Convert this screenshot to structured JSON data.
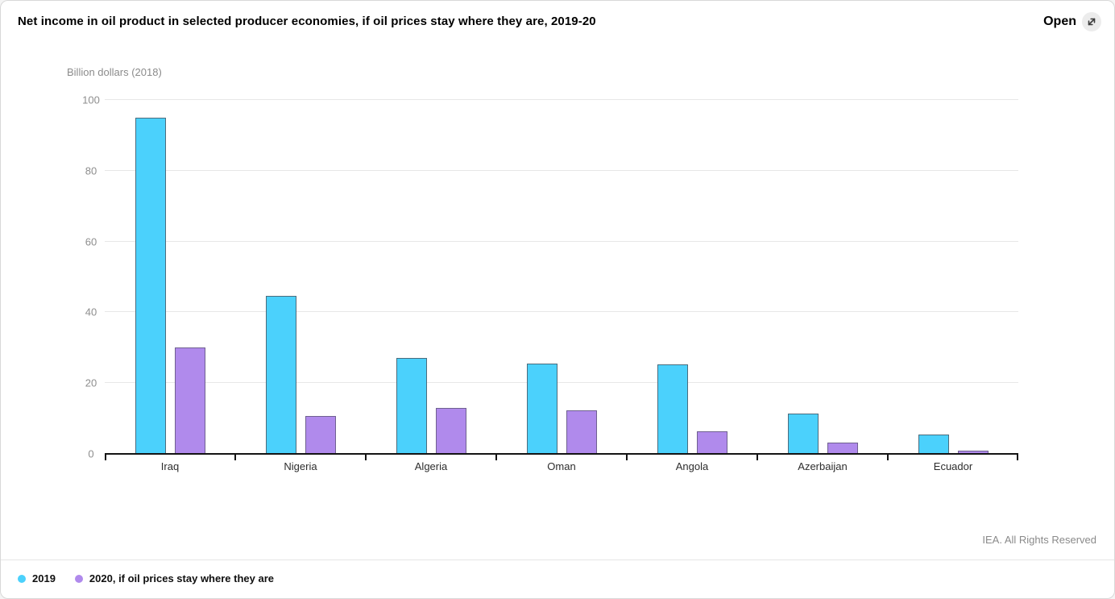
{
  "header": {
    "title": "Net income in oil product in selected producer economies, if oil prices stay where they are, 2019-20",
    "open_label": "Open"
  },
  "footer": {
    "copyright": "IEA. All Rights Reserved"
  },
  "chart_data": {
    "type": "bar",
    "title": "Net income in oil product in selected producer economies, if oil prices stay where they are, 2019-20",
    "ylabel": "Billion dollars (2018)",
    "xlabel": "",
    "ylim": [
      0,
      100
    ],
    "yticks": [
      0,
      20,
      40,
      60,
      80,
      100
    ],
    "grid": true,
    "legend_position": "bottom",
    "categories": [
      "Iraq",
      "Nigeria",
      "Algeria",
      "Oman",
      "Angola",
      "Azerbaijan",
      "Ecuador"
    ],
    "series": [
      {
        "name": "2019",
        "color": "#4BD1FC",
        "border_color": "#4a6c7d",
        "values": [
          95,
          44.6,
          27,
          25.6,
          25.4,
          11.5,
          5.4
        ]
      },
      {
        "name": "2020, if oil prices stay where they are",
        "color": "#B08AEC",
        "border_color": "#6f6090",
        "values": [
          30,
          10.6,
          13.1,
          12.4,
          6.4,
          3.1,
          1
        ]
      }
    ]
  }
}
